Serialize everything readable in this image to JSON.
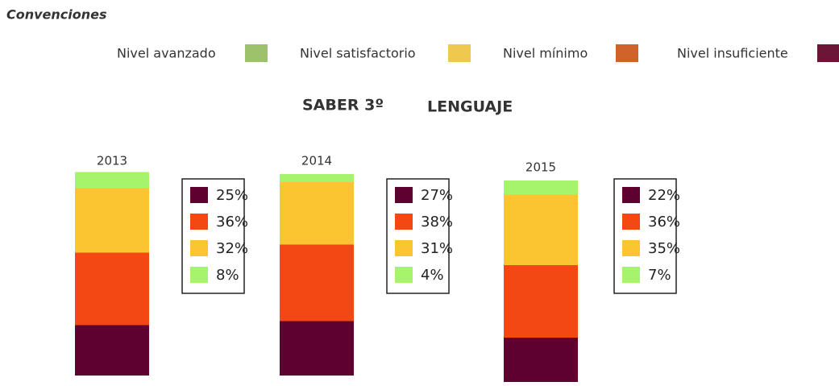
{
  "chart_data": {
    "type": "stacked_bar",
    "legend_title": "Convenciones",
    "title": "SABER 3º",
    "subtitle": "LENGUAJE",
    "categories": [
      "2013",
      "2014",
      "2015"
    ],
    "series": [
      {
        "name": "Nivel avanzado",
        "color": "#a6f36c",
        "legend_color": "#9cc36b",
        "values": [
          8,
          4,
          7
        ],
        "value_labels": [
          "8%",
          "4%",
          "7%"
        ]
      },
      {
        "name": "Nivel satisfactorio",
        "color": "#fbc531",
        "legend_color": "#eec94e",
        "values": [
          32,
          31,
          35
        ],
        "value_labels": [
          "32%",
          "31%",
          "35%"
        ]
      },
      {
        "name": "Nivel mínimo",
        "color": "#f44814",
        "legend_color": "#cf632c",
        "values": [
          36,
          38,
          36
        ],
        "value_labels": [
          "36%",
          "38%",
          "36%"
        ]
      },
      {
        "name": "Nivel insuficiente",
        "color": "#5e0030",
        "legend_color": "#6b1636",
        "values": [
          25,
          27,
          22
        ],
        "value_labels": [
          "25%",
          "27%",
          "22%"
        ]
      }
    ]
  }
}
